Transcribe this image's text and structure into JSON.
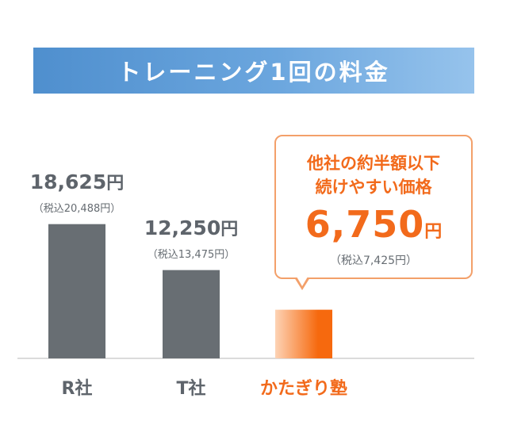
{
  "title": "トレーニング1回の料金",
  "chart_data": {
    "type": "bar",
    "categories": [
      "R社",
      "T社",
      "かたぎり塾"
    ],
    "values": [
      18625,
      12250,
      6750
    ],
    "value_labels": [
      "18,625",
      "12,250",
      "6,750"
    ],
    "unit": "円",
    "tax_labels": [
      "（税込20,488円）",
      "（税込13,475円）",
      "（税込7,425円）"
    ],
    "ylim": [
      0,
      19800
    ],
    "grid": false,
    "colors": {
      "competitor_bar": "#686e73",
      "highlight_bar_start": "#fdd3b5",
      "highlight_bar_end": "#f6690e",
      "competitor_label": "#5e646b",
      "highlight_label": "#f26a1b",
      "baseline": "#cfcfcf"
    }
  },
  "callout": {
    "line1": "他社の約半額以下",
    "line2": "続けやすい価格"
  }
}
